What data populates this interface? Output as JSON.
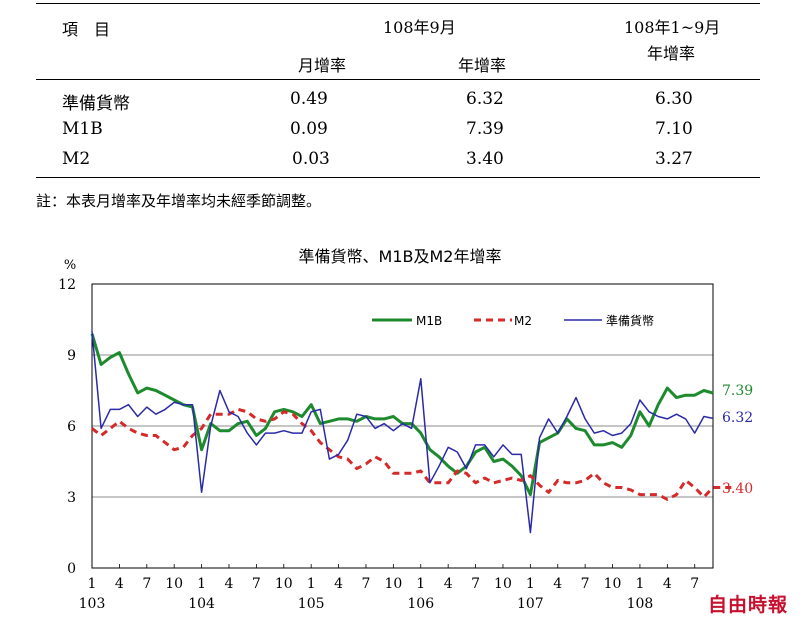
{
  "table": {
    "header": {
      "item": "項　目",
      "period1": "108年9月",
      "period2_line1": "108年1~9月",
      "period2_line2": "年增率",
      "sub_monthly": "月增率",
      "sub_yearly": "年增率"
    },
    "rows": [
      {
        "label": "準備貨幣",
        "monthly": "0.49",
        "yearly": "6.32",
        "ytd": "6.30"
      },
      {
        "label": "M1B",
        "monthly": "0.09",
        "yearly": "7.39",
        "ytd": "7.10"
      },
      {
        "label": "M2",
        "monthly": "0.03",
        "yearly": "3.40",
        "ytd": "3.27"
      }
    ],
    "note": "註：本表月增率及年增率均未經季節調整。"
  },
  "chart_data": {
    "type": "line",
    "title": "準備貨幣、M1B及M2年增率",
    "ylabel": "%",
    "ylim": [
      0,
      12
    ],
    "yticks": [
      "0",
      "3",
      "6",
      "9",
      "12"
    ],
    "xtick_labels": [
      "1",
      "4",
      "7",
      "10",
      "1",
      "4",
      "7",
      "10",
      "1",
      "4",
      "7",
      "10",
      "1",
      "4",
      "7",
      "10",
      "1",
      "4",
      "7",
      "10",
      "1",
      "4",
      "7"
    ],
    "year_labels": [
      "103",
      "104",
      "105",
      "106",
      "107",
      "108"
    ],
    "grid": true,
    "legend_position": "top-right",
    "colors": {
      "M1B": "#1e8a2e",
      "M2": "#d42a2a",
      "reserve": "#2a2aa8"
    },
    "end_labels": {
      "M1B": "7.39",
      "reserve": "6.32",
      "M2": "3.40"
    },
    "series": [
      {
        "name": "M1B",
        "key": "M1B",
        "values": [
          9.9,
          8.6,
          8.9,
          9.1,
          8.2,
          7.4,
          7.6,
          7.5,
          7.3,
          7.1,
          6.9,
          6.8,
          5.0,
          6.1,
          5.8,
          5.8,
          6.1,
          6.2,
          5.6,
          5.9,
          6.6,
          6.7,
          6.6,
          6.4,
          6.9,
          6.1,
          6.2,
          6.3,
          6.3,
          6.2,
          6.4,
          6.3,
          6.3,
          6.4,
          6.1,
          6.1,
          5.7,
          5.0,
          4.7,
          4.3,
          4.0,
          4.3,
          4.9,
          5.1,
          4.5,
          4.6,
          4.3,
          3.9,
          3.1,
          5.3,
          5.5,
          5.7,
          6.3,
          5.9,
          5.8,
          5.2,
          5.2,
          5.3,
          5.1,
          5.6,
          6.6,
          6.0,
          6.9,
          7.6,
          7.2,
          7.3,
          7.3,
          7.5,
          7.39
        ]
      },
      {
        "name": "M2",
        "key": "M2",
        "values": [
          5.9,
          5.6,
          5.9,
          6.2,
          5.9,
          5.7,
          5.6,
          5.6,
          5.3,
          5.0,
          5.1,
          5.6,
          5.9,
          6.5,
          6.5,
          6.5,
          6.7,
          6.6,
          6.3,
          6.2,
          6.3,
          6.6,
          6.5,
          6.1,
          5.8,
          5.3,
          5.0,
          4.7,
          4.6,
          4.2,
          4.4,
          4.7,
          4.5,
          4.0,
          4.0,
          4.0,
          4.1,
          3.6,
          3.6,
          3.6,
          4.1,
          4.0,
          3.6,
          3.8,
          3.6,
          3.7,
          3.8,
          3.7,
          3.9,
          3.5,
          3.2,
          3.7,
          3.6,
          3.6,
          3.7,
          4.0,
          3.6,
          3.4,
          3.4,
          3.3,
          3.1,
          3.1,
          3.1,
          2.9,
          3.1,
          3.7,
          3.4,
          3.0,
          3.4,
          3.4,
          3.4
        ]
      },
      {
        "name": "準備貨幣",
        "key": "reserve",
        "values": [
          10.0,
          5.9,
          6.7,
          6.7,
          6.9,
          6.4,
          6.8,
          6.5,
          6.7,
          7.0,
          6.9,
          6.9,
          3.2,
          6.0,
          7.5,
          6.6,
          6.4,
          5.7,
          5.2,
          5.7,
          5.7,
          5.8,
          5.7,
          5.7,
          6.6,
          6.7,
          4.6,
          4.8,
          5.4,
          6.5,
          6.4,
          5.9,
          6.1,
          5.8,
          6.1,
          5.9,
          8.0,
          3.6,
          4.3,
          5.1,
          4.9,
          4.2,
          5.2,
          5.2,
          4.7,
          5.2,
          4.8,
          4.8,
          1.5,
          5.5,
          6.3,
          5.7,
          6.4,
          7.2,
          6.3,
          5.7,
          5.8,
          5.6,
          5.7,
          6.1,
          7.1,
          6.6,
          6.4,
          6.3,
          6.5,
          6.3,
          5.7,
          6.4,
          6.32
        ]
      }
    ]
  },
  "watermark": "自由時報"
}
